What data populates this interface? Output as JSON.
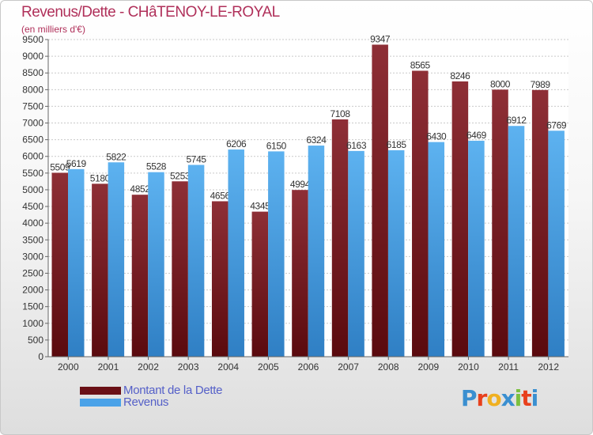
{
  "title": "Revenus/Dette - CHâTENOY-LE-ROYAL",
  "subtitle": "(en milliers d'€)",
  "logo": {
    "text": "Proxiti",
    "letters": [
      "P",
      "r",
      "o",
      "x",
      "i",
      "t",
      "i"
    ],
    "colors": [
      "#3a8fd0",
      "#e8401c",
      "#f0b020",
      "#3a8fd0",
      "#7cc040",
      "#e8401c",
      "#3a8fd0"
    ]
  },
  "chart_data": {
    "type": "bar",
    "categories": [
      "2000",
      "2001",
      "2002",
      "2003",
      "2004",
      "2005",
      "2006",
      "2007",
      "2008",
      "2009",
      "2010",
      "2011",
      "2012"
    ],
    "series": [
      {
        "name": "Montant de la Dette",
        "color": "#7a1f24",
        "values": [
          5509,
          5180,
          4852,
          5253,
          4656,
          4345,
          4994,
          7108,
          9347,
          8565,
          8246,
          8000,
          7989
        ]
      },
      {
        "name": "Revenus",
        "color": "#4aa2e8",
        "values": [
          5619,
          5822,
          5528,
          5745,
          6206,
          6150,
          6324,
          6163,
          6185,
          6430,
          6469,
          6912,
          6769
        ]
      }
    ],
    "ylim": [
      0,
      9500
    ],
    "yticks": [
      0,
      500,
      1000,
      1500,
      2000,
      2500,
      3000,
      3500,
      4000,
      4500,
      5000,
      5500,
      6000,
      6500,
      7000,
      7500,
      8000,
      8500,
      9000,
      9500
    ],
    "grid": true,
    "legend_position": "bottom-left"
  }
}
